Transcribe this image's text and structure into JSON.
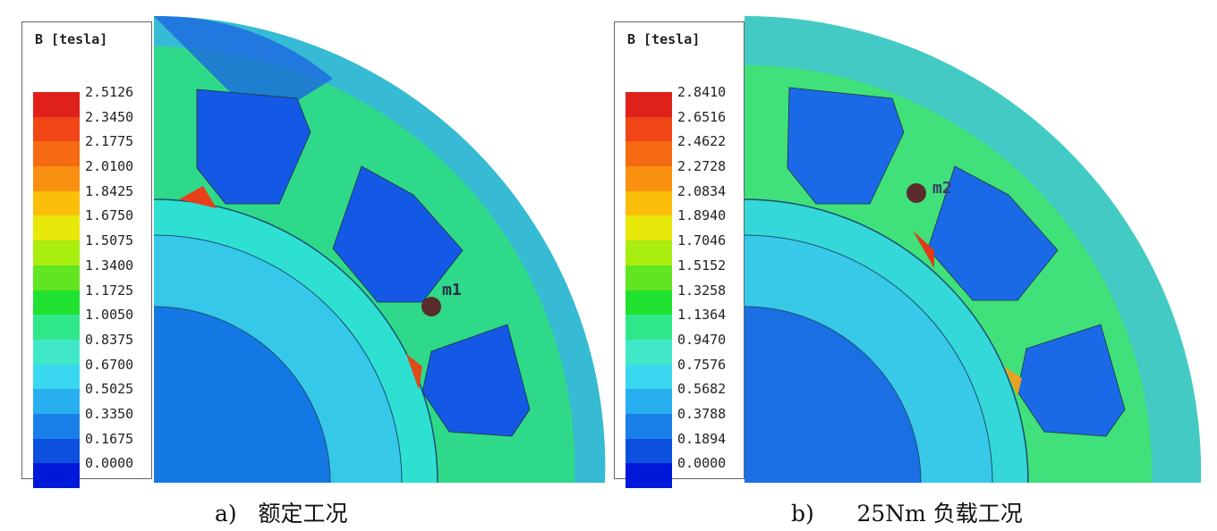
{
  "panels": [
    {
      "legend_title": "B [tesla]",
      "ticks": [
        "2.5126",
        "2.3450",
        "2.1775",
        "2.0100",
        "1.8425",
        "1.6750",
        "1.5075",
        "1.3400",
        "1.1725",
        "1.0050",
        "0.8375",
        "0.6700",
        "0.5025",
        "0.3350",
        "0.1675",
        "0.0000"
      ],
      "probe": "m1",
      "caption": "a)   额定工况"
    },
    {
      "legend_title": "B [tesla]",
      "ticks": [
        "2.8410",
        "2.6516",
        "2.4622",
        "2.2728",
        "2.0834",
        "1.8940",
        "1.7046",
        "1.5152",
        "1.3258",
        "1.1364",
        "0.9470",
        "0.7576",
        "0.5682",
        "0.3788",
        "0.1894",
        "0.0000"
      ],
      "probe": "m2",
      "caption": "b)      25Nm 负载工况"
    }
  ],
  "colormap": [
    "#e0201a",
    "#f04515",
    "#f56a12",
    "#f9900f",
    "#fbbe0a",
    "#e8e80a",
    "#a8ee10",
    "#60e520",
    "#20e030",
    "#30e88a",
    "#40e8c8",
    "#3ad8f0",
    "#28aff0",
    "#1880e8",
    "#0c50e0",
    "#0018d8"
  ]
}
